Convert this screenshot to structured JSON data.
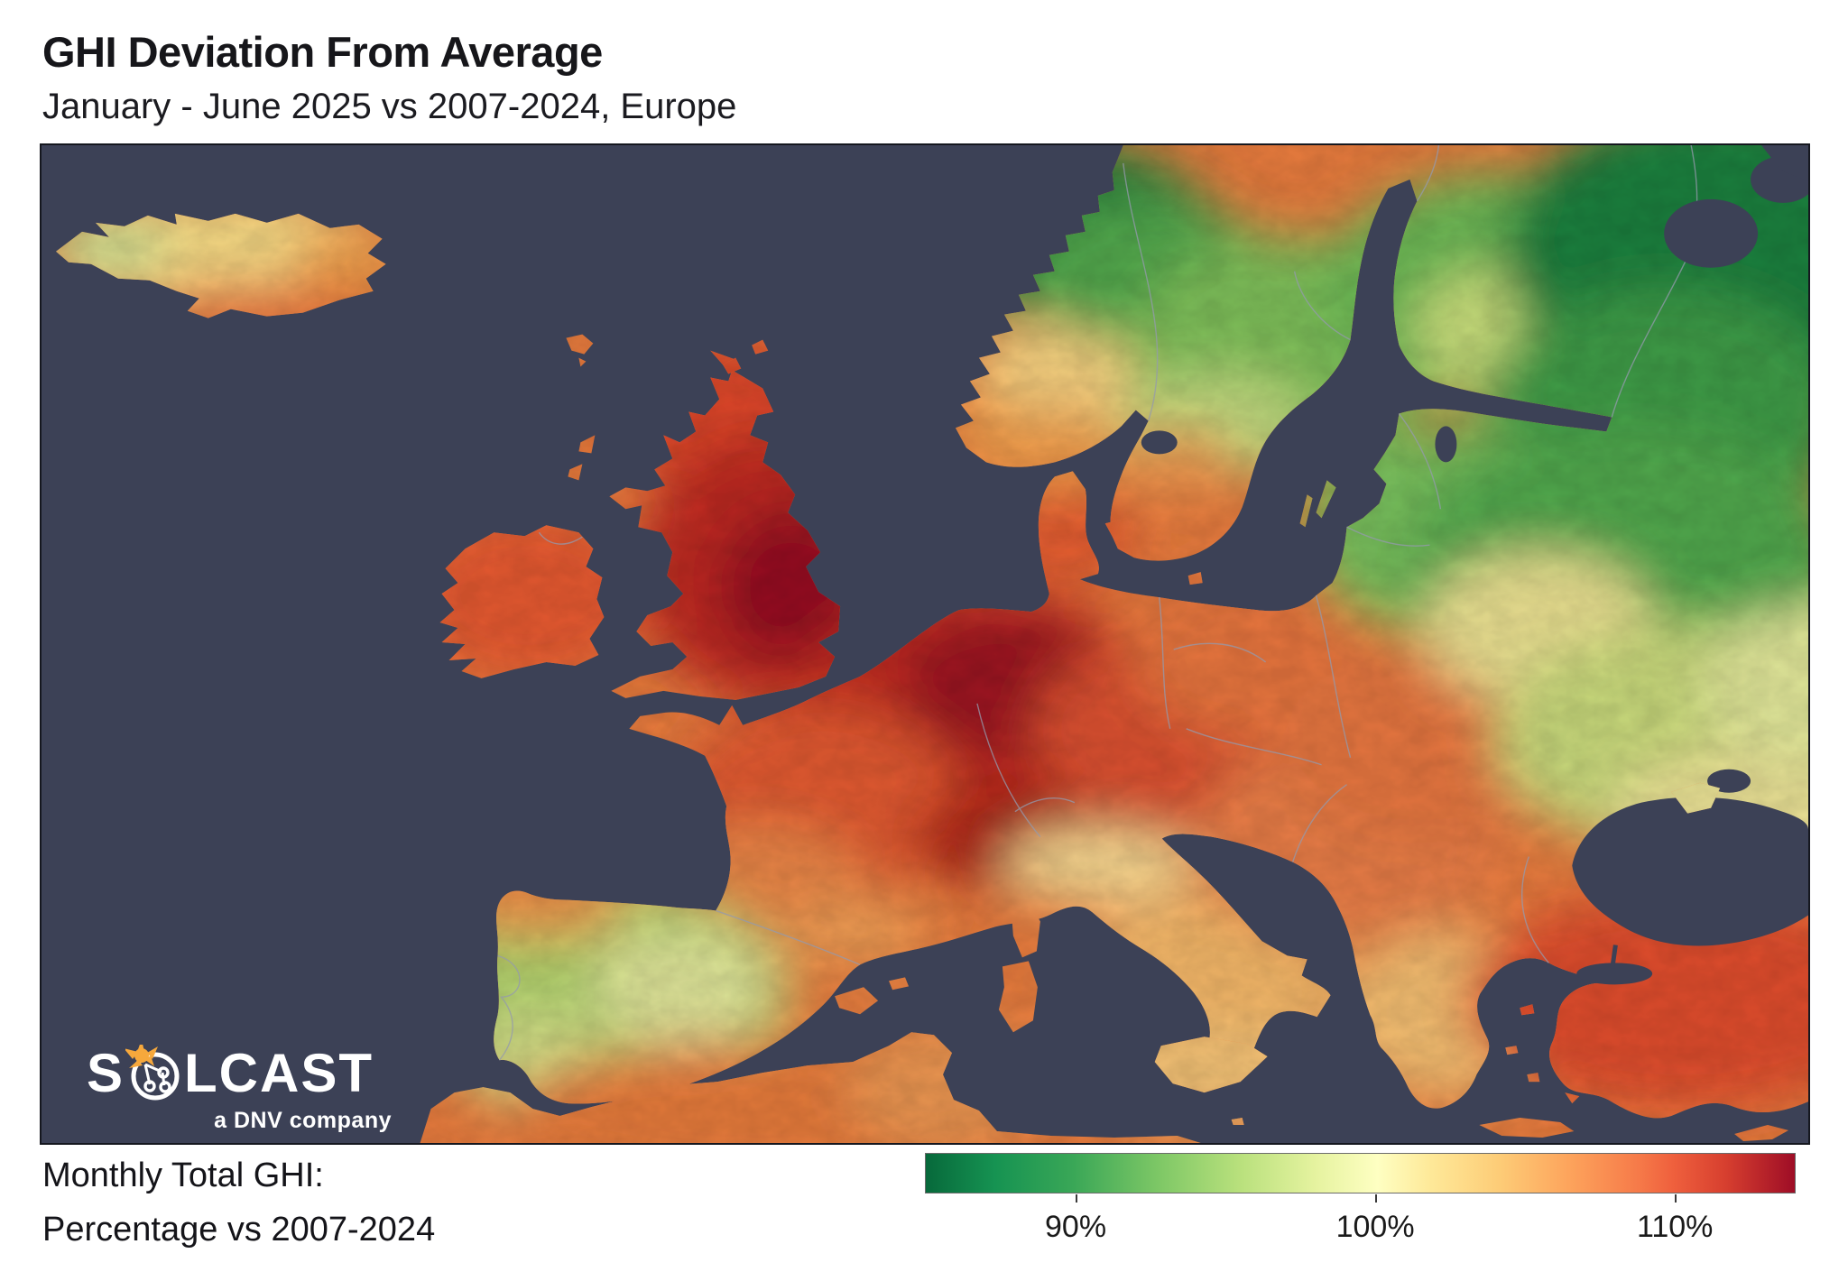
{
  "header": {
    "title": "GHI Deviation From Average",
    "subtitle": "January - June 2025 vs 2007-2024, Europe"
  },
  "legend": {
    "line1": "Monthly Total GHI:",
    "line2": "Percentage vs 2007-2024"
  },
  "colorbar": {
    "min_pct": 85,
    "max_pct": 114,
    "ticks": [
      {
        "value": 90,
        "label": "90%"
      },
      {
        "value": 100,
        "label": "100%"
      },
      {
        "value": 110,
        "label": "110%"
      }
    ],
    "stops": [
      [
        0,
        "#07693b"
      ],
      [
        8,
        "#169352"
      ],
      [
        17,
        "#3aa757"
      ],
      [
        27,
        "#7fc866"
      ],
      [
        36,
        "#b8e07c"
      ],
      [
        45,
        "#e6f3a0"
      ],
      [
        52,
        "#feffc2"
      ],
      [
        58,
        "#fee999"
      ],
      [
        66,
        "#fdcc77"
      ],
      [
        74,
        "#fda45c"
      ],
      [
        82,
        "#f67a49"
      ],
      [
        86,
        "#ef603d"
      ],
      [
        92,
        "#d73f2f"
      ],
      [
        100,
        "#9e0d26"
      ]
    ],
    "border_color": "#6b6b6b"
  },
  "logo": {
    "word_left": "S",
    "word_right": "LCAST",
    "tagline": "a DNV company",
    "sun_color": "#f6a83c",
    "text_color": "#ffffff"
  },
  "map": {
    "sea_color": "#3c4156",
    "frame_color": "#15171f",
    "country_border_color": "#949aad"
  },
  "chart_data": {
    "type": "heatmap",
    "title": "GHI Deviation From Average",
    "subtitle": "January - June 2025 vs 2007-2024, Europe",
    "unit": "monthly total GHI as % of 2007-2024 average",
    "colormap": "green (low) to yellow to red (high), RdYlGn reversed",
    "scale_range_pct": [
      85,
      114
    ],
    "tick_values_pct": [
      90,
      100,
      110
    ],
    "legend_position": "bottom-right",
    "regions": [
      {
        "name": "Iceland",
        "value_pct": 99
      },
      {
        "name": "United Kingdom",
        "value_pct": 112
      },
      {
        "name": "Ireland",
        "value_pct": 109
      },
      {
        "name": "Norway (north/mountains)",
        "value_pct": 88
      },
      {
        "name": "Norway (south coast)",
        "value_pct": 101
      },
      {
        "name": "Sweden",
        "value_pct": 92
      },
      {
        "name": "Finland",
        "value_pct": 91
      },
      {
        "name": "Northwest Russia",
        "value_pct": 87
      },
      {
        "name": "Baltic states",
        "value_pct": 93
      },
      {
        "name": "Belarus / West Russia",
        "value_pct": 92
      },
      {
        "name": "Poland",
        "value_pct": 106
      },
      {
        "name": "Germany",
        "value_pct": 112
      },
      {
        "name": "Benelux",
        "value_pct": 111
      },
      {
        "name": "France",
        "value_pct": 109
      },
      {
        "name": "Denmark",
        "value_pct": 108
      },
      {
        "name": "Spain",
        "value_pct": 95
      },
      {
        "name": "Portugal",
        "value_pct": 96
      },
      {
        "name": "Alps",
        "value_pct": 111
      },
      {
        "name": "Northern Italy (Po valley)",
        "value_pct": 100
      },
      {
        "name": "Southern Italy",
        "value_pct": 102
      },
      {
        "name": "Czechia / Austria",
        "value_pct": 108
      },
      {
        "name": "Balkans",
        "value_pct": 105
      },
      {
        "name": "Greece",
        "value_pct": 102
      },
      {
        "name": "Romania / Hungary",
        "value_pct": 106
      },
      {
        "name": "Ukraine",
        "value_pct": 96
      },
      {
        "name": "Turkey",
        "value_pct": 109
      },
      {
        "name": "North Africa",
        "value_pct": 106
      }
    ]
  }
}
